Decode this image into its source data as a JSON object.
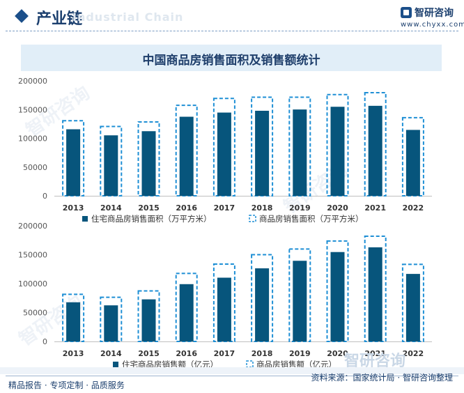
{
  "header": {
    "title": "产业链",
    "ghost_text": "Industrial Chain",
    "brand_name": "智研咨询",
    "brand_url": "www.chyxx.com"
  },
  "chart_title": "中国商品房销售面积及销售额统计",
  "chart_data": [
    {
      "type": "bar",
      "categories": [
        "2013",
        "2014",
        "2015",
        "2016",
        "2017",
        "2018",
        "2019",
        "2020",
        "2021",
        "2022"
      ],
      "ylim": [
        0,
        200000
      ],
      "yticks": [
        "0",
        "50000",
        "100000",
        "150000",
        "200000"
      ],
      "legend_position": "bottom",
      "series": [
        {
          "name": "住宅商品房销售面积（万平方米）",
          "style": "solid",
          "color": "#07557c",
          "values": [
            115723,
            105188,
            112406,
            137540,
            144789,
            147929,
            150144,
            154878,
            156532,
            114631
          ]
        },
        {
          "name": "商品房销售面积（万平方米）",
          "style": "dashed-outline",
          "color": "#1e8fd5",
          "values": [
            130551,
            120649,
            128495,
            157349,
            169408,
            171465,
            171558,
            176086,
            179433,
            135837
          ]
        }
      ]
    },
    {
      "type": "bar",
      "categories": [
        "2013",
        "2014",
        "2015",
        "2016",
        "2017",
        "2018",
        "2019",
        "2020",
        "2021",
        "2022"
      ],
      "ylim": [
        0,
        200000
      ],
      "yticks": [
        "0",
        "50000",
        "100000",
        "150000",
        "200000"
      ],
      "legend_position": "bottom",
      "series": [
        {
          "name": "住宅商品房销售额（亿元）",
          "style": "solid",
          "color": "#07557c",
          "values": [
            67695,
            62411,
            72770,
            99064,
            110240,
            126393,
            139440,
            154567,
            162730,
            116747
          ]
        },
        {
          "name": "商品房销售额（亿元）",
          "style": "dashed-outline",
          "color": "#1e8fd5",
          "values": [
            81428,
            76292,
            87281,
            117627,
            133701,
            149973,
            159725,
            173613,
            181930,
            133308
          ]
        }
      ]
    }
  ],
  "watermark_text": "智研咨询",
  "footer": {
    "left": "精品报告 · 专项定制 · 品质服务",
    "right": "资料来源：国家统计局 · 智研咨询整理"
  }
}
